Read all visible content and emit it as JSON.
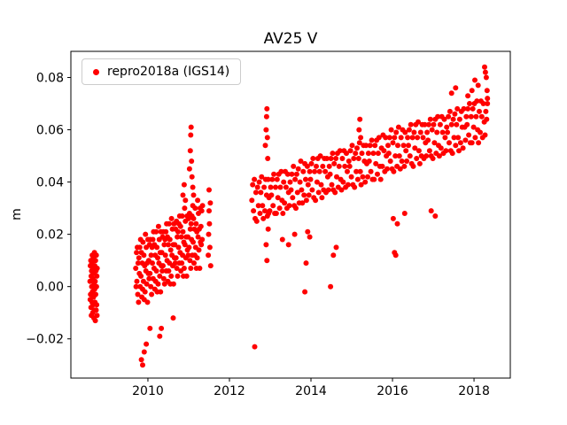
{
  "figure": {
    "title": "AV25 V",
    "background": "#ffffff"
  },
  "legend": {
    "label": "repro2018a (IGS14)",
    "marker_color": "#ff0000"
  },
  "chart_data": {
    "type": "scatter",
    "title": "AV25 V",
    "xlabel": "",
    "ylabel": "m",
    "grid": false,
    "legend_position": "upper-left",
    "xlim": [
      2008.11,
      2018.89
    ],
    "ylim": [
      -0.035,
      0.09
    ],
    "xticks": {
      "values": [
        2010,
        2012,
        2014,
        2016,
        2018
      ],
      "labels": [
        "2010",
        "2012",
        "2014",
        "2016",
        "2018"
      ]
    },
    "yticks": {
      "values": [
        -0.02,
        0.0,
        0.02,
        0.04,
        0.06,
        0.08
      ],
      "labels": [
        "−0.02",
        "0.00",
        "0.02",
        "0.04",
        "0.06",
        "0.08"
      ]
    },
    "series": [
      {
        "name": "repro2018a (IGS14)",
        "color": "#ff0000",
        "marker": "circle",
        "runs": [
          {
            "x0": 2008.58,
            "dx": 0.0045,
            "y_scale": 0.001,
            "y": [
              2,
              -5,
              8,
              -3,
              10,
              -8,
              4,
              -11,
              6,
              0,
              9,
              -6,
              12,
              -2,
              7,
              -10,
              3,
              -7,
              11,
              -4,
              5,
              -12,
              1,
              -9,
              13,
              -1,
              8,
              -6,
              2,
              -13,
              10,
              -3,
              6,
              -9,
              12,
              0,
              -7,
              4,
              -11,
              7
            ]
          },
          {
            "x0": 2009.7,
            "dx": 0.01,
            "y_scale": 0.001,
            "y": [
              7,
              0,
              13,
              2,
              15,
              -3,
              9,
              -6,
              11,
              5,
              15,
              0,
              18,
              4,
              13,
              -4,
              9,
              -1,
              17,
              2,
              12,
              -5,
              8,
              -2,
              20,
              6,
              15,
              1,
              9,
              -6,
              18,
              5,
              10,
              3,
              16,
              5,
              18,
              0,
              12,
              -3,
              15,
              9,
              18,
              3,
              21,
              7,
              16,
              -1,
              12,
              2,
              21,
              6,
              15,
              -2,
              11,
              1,
              23,
              9,
              18,
              4,
              13,
              -2,
              21,
              8,
              13,
              6,
              19,
              8,
              21,
              3,
              16,
              1,
              18,
              12,
              21,
              6,
              24,
              10,
              19,
              2,
              16,
              6,
              24,
              9,
              18,
              1,
              14,
              4,
              26,
              12,
              22,
              8,
              16,
              1,
              24,
              11,
              16,
              9,
              22,
              11,
              25,
              7,
              19,
              4,
              21,
              15,
              24,
              9,
              27,
              13,
              23,
              6,
              19,
              9,
              27,
              12,
              21,
              4,
              17,
              7,
              30,
              16,
              25,
              11,
              19,
              4,
              27,
              14,
              19,
              12,
              26,
              15,
              28,
              10,
              22,
              7,
              24,
              18,
              27,
              12,
              31,
              17,
              26,
              9,
              22,
              12,
              30,
              15,
              24,
              7,
              21,
              11,
              33,
              19,
              28,
              14,
              22,
              7,
              30,
              17,
              23,
              16,
              29,
              18,
              31
            ]
          },
          {
            "x0": 2012.55,
            "dx": 0.02,
            "y_scale": 0.001,
            "y": [
              33,
              39,
              29,
              41,
              26,
              36,
              25,
              38,
              31,
              40,
              28,
              36,
              42,
              31,
              26,
              38,
              29,
              41,
              35,
              27,
              41,
              34,
              29,
              38,
              35,
              41,
              31,
              43,
              28,
              38,
              28,
              41,
              34,
              43,
              30,
              38,
              44,
              33,
              28,
              40,
              32,
              44,
              38,
              30,
              43,
              36,
              31,
              40,
              37,
              43,
              34,
              46,
              31,
              41,
              30,
              43,
              36,
              45,
              32,
              40,
              48,
              37,
              32,
              44,
              35,
              47,
              41,
              33,
              46,
              39,
              35,
              44,
              41,
              47,
              37,
              49,
              34,
              44,
              33,
              46,
              40,
              49,
              36,
              44,
              50,
              39,
              34,
              46,
              37,
              49,
              44,
              36,
              49,
              42,
              37,
              46,
              43,
              49,
              39,
              51,
              37,
              47,
              36,
              49,
              42,
              51,
              38,
              46,
              52,
              41,
              37,
              49,
              40,
              52,
              46,
              38,
              51,
              44,
              39,
              48,
              46,
              52,
              42,
              54,
              39,
              49,
              38,
              51,
              44,
              53,
              41,
              49,
              55,
              44,
              39,
              51,
              42,
              54,
              48,
              40,
              54,
              47,
              42,
              51,
              48,
              54,
              44,
              56,
              41,
              51,
              41,
              54,
              47,
              56,
              43,
              51,
              57,
              46,
              41,
              53,
              46,
              58,
              52,
              44,
              57,
              50,
              45,
              54,
              51,
              57,
              48,
              60,
              45,
              55,
              44,
              57,
              50,
              59,
              46,
              54,
              61,
              50,
              45,
              57,
              48,
              60,
              54,
              46,
              59,
              52,
              48,
              57,
              54,
              60,
              50,
              62,
              47,
              57,
              46,
              59,
              53,
              62,
              49,
              57,
              63,
              52,
              47,
              59,
              50,
              62,
              57,
              49,
              62,
              55,
              50,
              59,
              56,
              62,
              52,
              64,
              50,
              60,
              49,
              62,
              55,
              64,
              51,
              59,
              65,
              54,
              50,
              62,
              53,
              65,
              59,
              51,
              64,
              57,
              52,
              61,
              59,
              65,
              55,
              67,
              52,
              62,
              51,
              64,
              57,
              66,
              54,
              62,
              68,
              57,
              52,
              64,
              55,
              67,
              61,
              53,
              68,
              61,
              56,
              65,
              62,
              68,
              58,
              70,
              55,
              65,
              55,
              68,
              61,
              70,
              57,
              65,
              71,
              60,
              55,
              67,
              59,
              71,
              65,
              57,
              70,
              63,
              58,
              67,
              64,
              70
            ]
          },
          {
            "points": [
              [
                2009.84,
                -0.028
              ],
              [
                2009.87,
                -0.03
              ],
              [
                2009.91,
                -0.025
              ],
              [
                2009.96,
                -0.022
              ],
              [
                2010.05,
                -0.016
              ],
              [
                2010.29,
                -0.019
              ],
              [
                2010.33,
                -0.016
              ],
              [
                2010.62,
                -0.012
              ],
              [
                2010.86,
                0.035
              ],
              [
                2010.89,
                0.039
              ],
              [
                2010.92,
                0.033
              ],
              [
                2011.02,
                0.045
              ],
              [
                2011.04,
                0.052
              ],
              [
                2011.05,
                0.058
              ],
              [
                2011.06,
                0.061
              ],
              [
                2011.07,
                0.048
              ],
              [
                2011.08,
                0.042
              ],
              [
                2011.1,
                0.038
              ],
              [
                2011.12,
                0.035
              ],
              [
                2011.48,
                0.012
              ],
              [
                2011.49,
                0.02
              ],
              [
                2011.5,
                0.029
              ],
              [
                2011.5,
                0.037
              ],
              [
                2011.51,
                0.024
              ],
              [
                2011.52,
                0.015
              ],
              [
                2011.53,
                0.032
              ],
              [
                2011.54,
                0.008
              ],
              [
                2012.62,
                -0.023
              ],
              [
                2012.88,
                0.054
              ],
              [
                2012.9,
                0.06
              ],
              [
                2012.91,
                0.065
              ],
              [
                2012.92,
                0.068
              ],
              [
                2012.93,
                0.057
              ],
              [
                2012.94,
                0.049
              ],
              [
                2012.9,
                0.016
              ],
              [
                2012.92,
                0.01
              ],
              [
                2012.95,
                0.022
              ],
              [
                2012.96,
                0.028
              ],
              [
                2013.3,
                0.018
              ],
              [
                2013.45,
                0.016
              ],
              [
                2013.6,
                0.02
              ],
              [
                2013.85,
                -0.002
              ],
              [
                2013.88,
                0.009
              ],
              [
                2013.92,
                0.021
              ],
              [
                2013.97,
                0.019
              ],
              [
                2014.48,
                0.0
              ],
              [
                2014.55,
                0.012
              ],
              [
                2014.62,
                0.015
              ],
              [
                2015.18,
                0.06
              ],
              [
                2015.2,
                0.064
              ],
              [
                2015.22,
                0.057
              ],
              [
                2016.02,
                0.026
              ],
              [
                2016.05,
                0.013
              ],
              [
                2016.08,
                0.012
              ],
              [
                2016.12,
                0.024
              ],
              [
                2016.3,
                0.028
              ],
              [
                2016.95,
                0.029
              ],
              [
                2017.05,
                0.027
              ],
              [
                2017.45,
                0.074
              ],
              [
                2017.55,
                0.076
              ],
              [
                2017.85,
                0.073
              ],
              [
                2017.95,
                0.075
              ],
              [
                2018.02,
                0.079
              ],
              [
                2018.1,
                0.077
              ],
              [
                2018.26,
                0.084
              ],
              [
                2018.28,
                0.082
              ],
              [
                2018.3,
                0.08
              ],
              [
                2018.32,
                0.075
              ],
              [
                2018.33,
                0.072
              ]
            ]
          }
        ]
      }
    ]
  }
}
